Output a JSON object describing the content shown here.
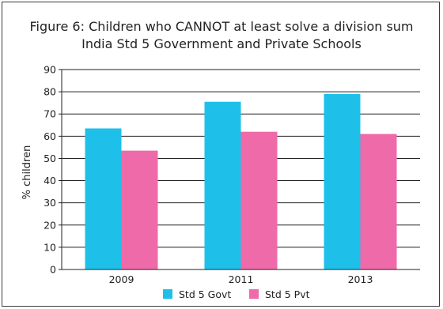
{
  "chart_data": {
    "type": "bar",
    "title": [
      "Figure 6: Children who CANNOT at least solve a division sum",
      "India Std 5 Government and Private Schools"
    ],
    "xlabel": "",
    "ylabel": "% children",
    "ylim": [
      0,
      90
    ],
    "yticks": [
      0,
      10,
      20,
      30,
      40,
      50,
      60,
      70,
      80,
      90
    ],
    "categories": [
      "2009",
      "2011",
      "2013"
    ],
    "series": [
      {
        "name": "Std 5 Govt",
        "values": [
          63.5,
          75.5,
          79
        ],
        "color": "#1ec0ea"
      },
      {
        "name": "Std 5 Pvt",
        "values": [
          53.5,
          62,
          61
        ],
        "color": "#ef6aa8"
      }
    ],
    "grid": true,
    "legend": "bottom"
  }
}
